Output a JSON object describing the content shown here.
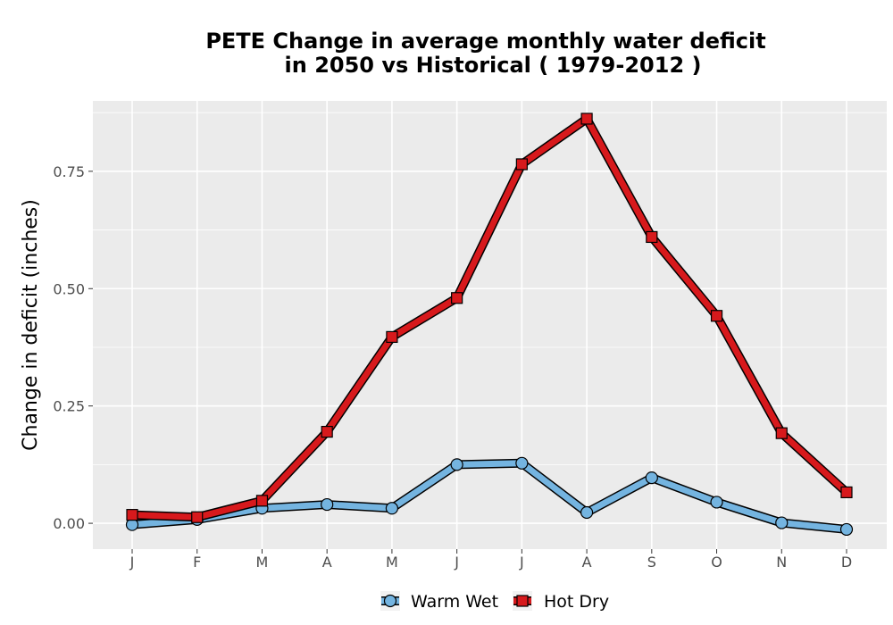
{
  "chart_data": {
    "type": "line",
    "title_line1": "PETE  Change in average monthly water deficit",
    "title_line2": "in 2050 vs Historical ( 1979-2012 )",
    "xlabel": "",
    "ylabel": "Change in deficit (inches)",
    "categories": [
      "J",
      "F",
      "M",
      "A",
      "M",
      "J",
      "J",
      "A",
      "S",
      "O",
      "N",
      "D"
    ],
    "ylim": [
      -0.055,
      0.9
    ],
    "yticks": [
      0.0,
      0.25,
      0.5,
      0.75
    ],
    "ytick_labels": [
      "0.00",
      "0.25",
      "0.50",
      "0.75"
    ],
    "grid": true,
    "legend_position": "bottom",
    "series": [
      {
        "name": "Warm Wet",
        "marker": "circle",
        "color": "#74b4e0",
        "values": [
          -0.003,
          0.008,
          0.032,
          0.04,
          0.032,
          0.125,
          0.128,
          0.023,
          0.097,
          0.045,
          0.001,
          -0.013
        ]
      },
      {
        "name": "Hot Dry",
        "marker": "square",
        "color": "#d7191c",
        "values": [
          0.018,
          0.013,
          0.048,
          0.195,
          0.397,
          0.48,
          0.765,
          0.862,
          0.61,
          0.442,
          0.192,
          0.066
        ]
      }
    ]
  }
}
